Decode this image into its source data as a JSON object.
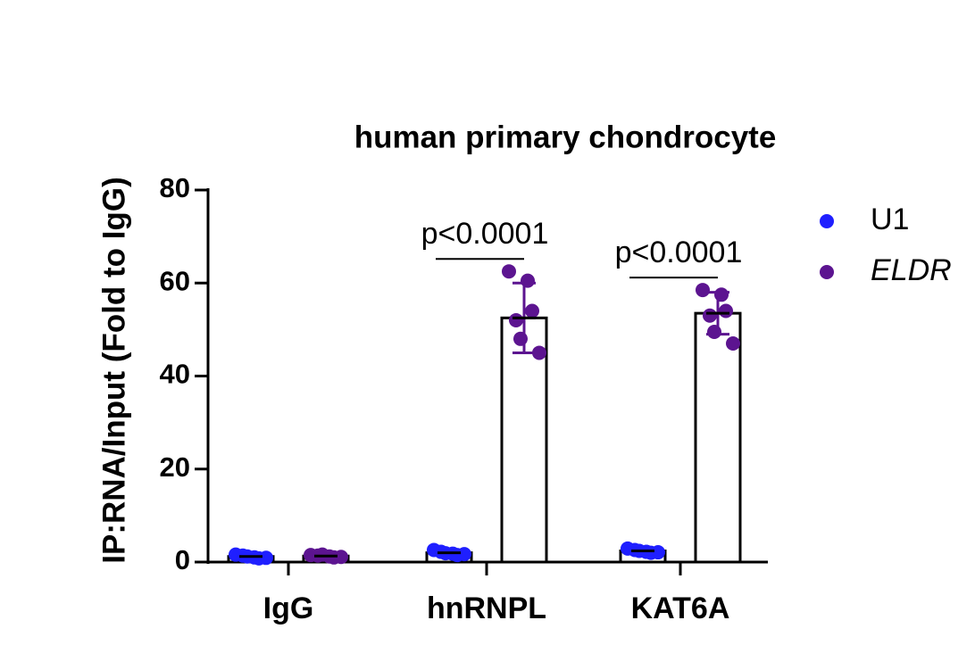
{
  "chart_data": {
    "type": "bar",
    "title": "human primary chondrocyte",
    "ylabel": "IP:RNA/Input (Fold to IgG)",
    "categories": [
      "IgG",
      "hnRNPL",
      "KAT6A"
    ],
    "ylim": [
      0,
      80
    ],
    "yticks": [
      0,
      20,
      40,
      60,
      80
    ],
    "series": [
      {
        "name": "U1",
        "color": "#1f1fff",
        "italic": false,
        "values": [
          1.2,
          2.0,
          2.4
        ],
        "errors": [
          0.4,
          0.5,
          0.6
        ],
        "points": [
          [
            1.6,
            1.0,
            0.8,
            1.4,
            1.2,
            0.9
          ],
          [
            2.6,
            1.8,
            1.5,
            2.2,
            1.9,
            1.7
          ],
          [
            2.9,
            2.2,
            2.0,
            2.6,
            2.4,
            2.1
          ]
        ]
      },
      {
        "name": "ELDR",
        "color": "#5c1490",
        "italic": true,
        "values": [
          1.3,
          52.5,
          53.5
        ],
        "errors": [
          0.3,
          7.5,
          4.5
        ],
        "points": [
          [
            1.5,
            1.2,
            1.0,
            1.4,
            1.6,
            1.1
          ],
          [
            62.5,
            60.5,
            54,
            52,
            48,
            45
          ],
          [
            58.5,
            57.5,
            54,
            53,
            49.5,
            47
          ]
        ]
      }
    ],
    "annotations": [
      {
        "text": "p<0.0001",
        "category": "hnRNPL"
      },
      {
        "text": "p<0.0001",
        "category": "KAT6A"
      }
    ]
  }
}
